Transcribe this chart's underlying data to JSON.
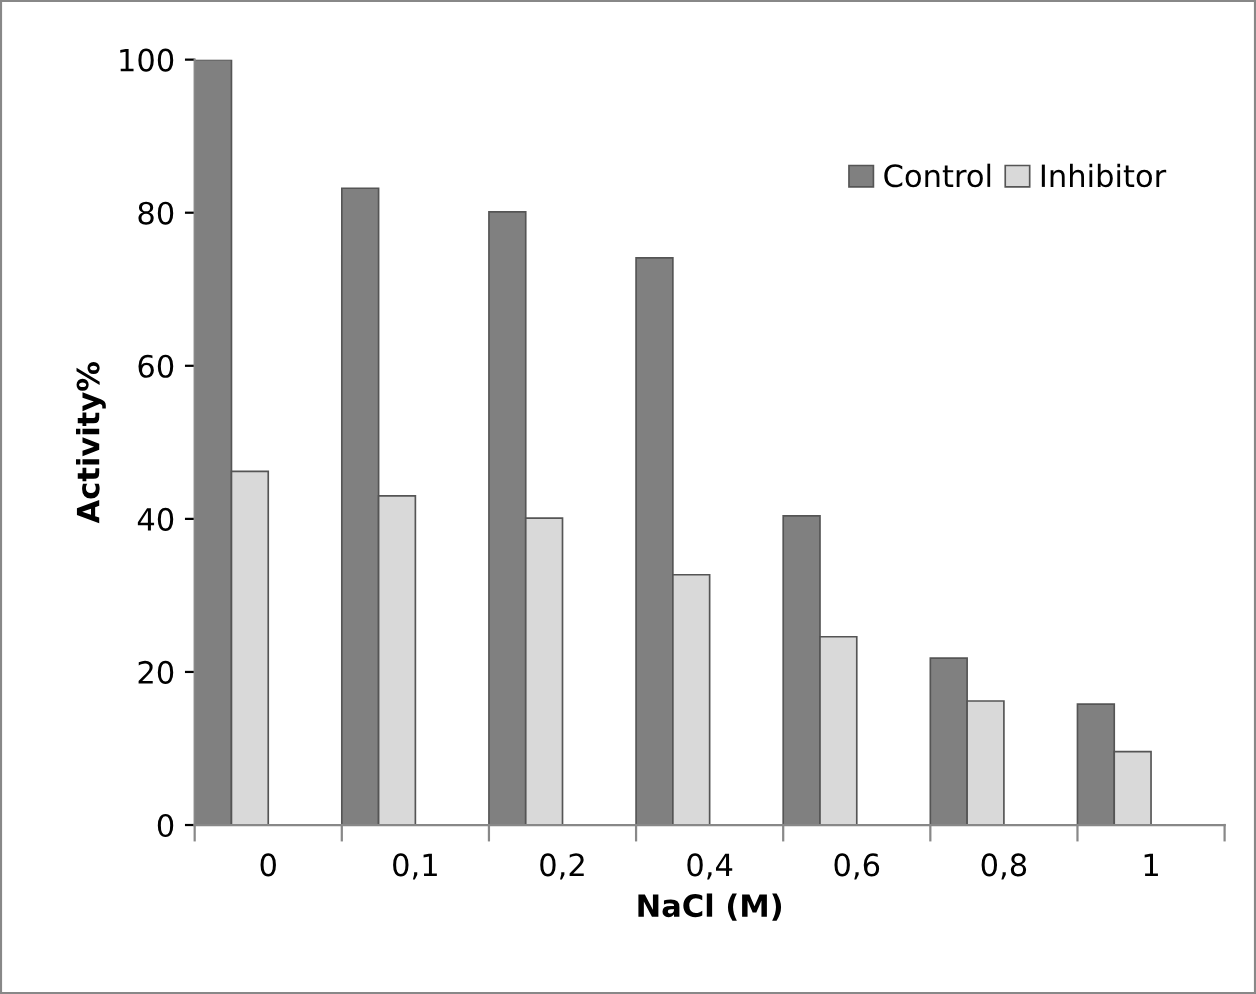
{
  "chart_data": {
    "type": "bar",
    "xlabel": "NaCl (M)",
    "ylabel": "Activity%",
    "categories": [
      "0",
      "0,1",
      "0,2",
      "0,4",
      "0,6",
      "0,8",
      "1"
    ],
    "series": [
      {
        "name": "Control",
        "color": "#808080",
        "values": [
          100,
          83.2,
          80.1,
          74.1,
          40.4,
          21.8,
          15.8
        ]
      },
      {
        "name": "Inhibitor",
        "color": "#d9d9d9",
        "values": [
          46.2,
          43.0,
          40.1,
          32.7,
          24.6,
          16.2,
          9.6
        ]
      }
    ],
    "ylim": [
      0,
      100
    ],
    "yticks": [
      0,
      20,
      40,
      60,
      80,
      100
    ],
    "grid": false,
    "legend": "top right"
  }
}
